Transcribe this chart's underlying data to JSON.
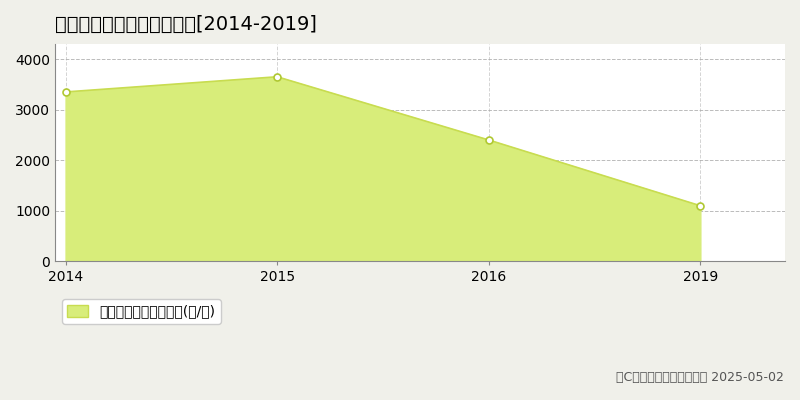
{
  "title": "佐野市中町　林地価格推移[2014-2019]",
  "years": [
    2014,
    2015,
    2016,
    2019
  ],
  "values": [
    3350,
    3650,
    2400,
    1100
  ],
  "line_color": "#c8dc50",
  "fill_color": "#d8ed7a",
  "fill_alpha": 1.0,
  "marker_color": "#ffffff",
  "marker_edge_color": "#b0c832",
  "ylim": [
    0,
    4300
  ],
  "yticks": [
    0,
    1000,
    2000,
    3000,
    4000
  ],
  "outer_bg_color": "#f0f0ea",
  "plot_bg_color": "#ffffff",
  "grid_color": "#aaaaaa",
  "spine_color": "#888888",
  "legend_label": "林地価格　平均坪単価(円/坪)",
  "copyright_text": "（C）土地価格ドットコム 2025-05-02",
  "title_fontsize": 14,
  "tick_fontsize": 10,
  "legend_fontsize": 10,
  "copyright_fontsize": 9
}
